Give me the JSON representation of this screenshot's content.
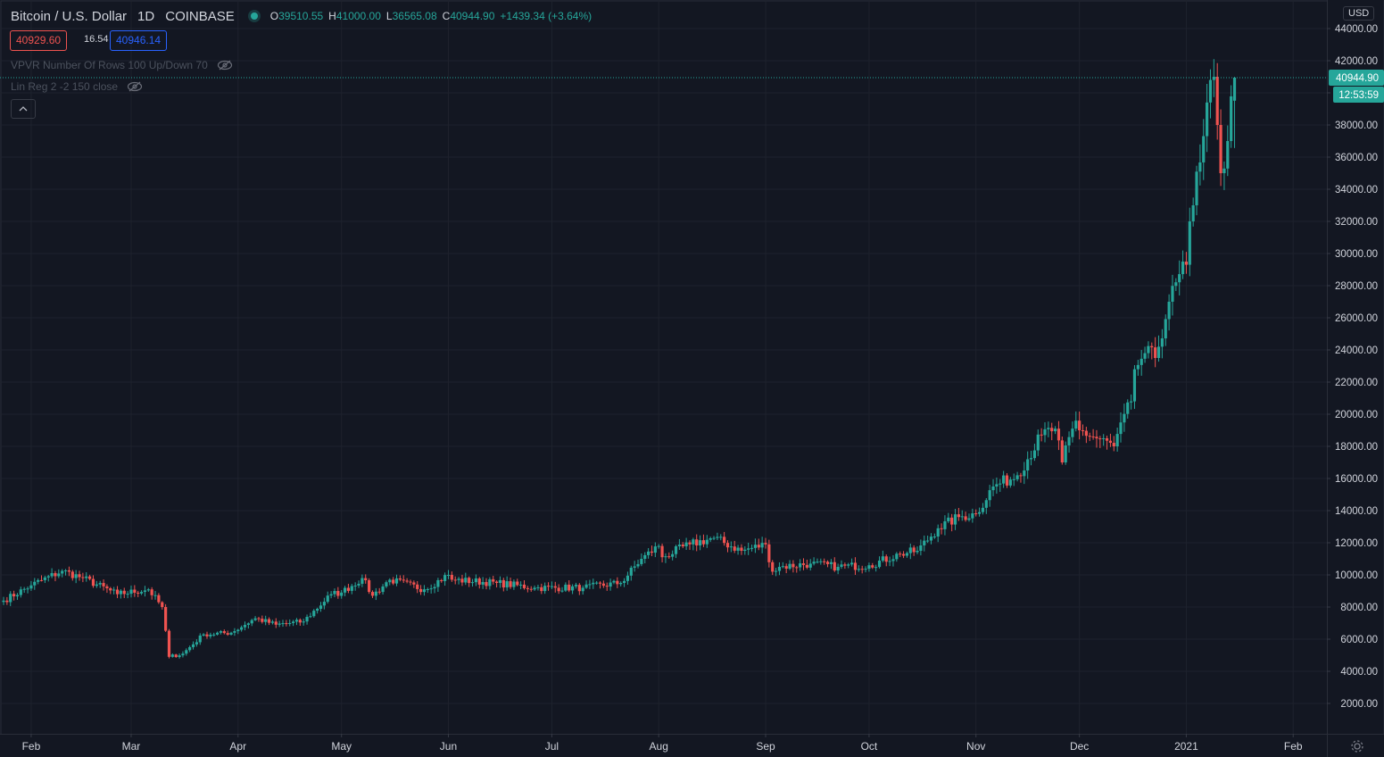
{
  "header": {
    "symbol": "Bitcoin / U.S. Dollar",
    "interval": "1D",
    "exchange": "COINBASE",
    "open_key": "O",
    "open": "39510.55",
    "high_key": "H",
    "high": "41000.00",
    "low_key": "L",
    "low": "36565.08",
    "close_key": "C",
    "close": "40944.90",
    "change": "+1439.34 (+3.64%)"
  },
  "trade": {
    "sell": "40929.60",
    "spread": "16.54",
    "buy": "40946.14"
  },
  "indicators": [
    {
      "label": "VPVR Number Of Rows 100 Up/Down 70"
    },
    {
      "label": "Lin Reg 2 -2 150 close"
    }
  ],
  "price_axis": {
    "currency": "USD",
    "last_price": "40944.90",
    "countdown": "12:53:59"
  },
  "colors": {
    "background": "#131722",
    "up": "#26a69a",
    "down": "#ef5350",
    "grid": "#1e222d",
    "text": "#d1d4dc"
  },
  "icons": [
    "live-dot-icon",
    "eye-hidden-icon",
    "chevron-up-icon",
    "gear-icon"
  ],
  "chart_data": {
    "type": "candlestick",
    "title": "Bitcoin / U.S. Dollar",
    "ylabel": "USD",
    "ylim": [
      0,
      45000
    ],
    "yticks": [
      2000,
      4000,
      6000,
      8000,
      10000,
      12000,
      14000,
      16000,
      18000,
      20000,
      22000,
      24000,
      26000,
      28000,
      30000,
      32000,
      34000,
      36000,
      38000,
      40000,
      42000,
      44000
    ],
    "ytick_labels": [
      "2000.00",
      "4000.00",
      "6000.00",
      "8000.00",
      "10000.00",
      "12000.00",
      "14000.00",
      "16000.00",
      "18000.00",
      "20000.00",
      "22000.00",
      "24000.00",
      "26000.00",
      "28000.00",
      "30000.00",
      "32000.00",
      "34000.00",
      "36000.00",
      "38000.00",
      "40000.00",
      "42000.00",
      "44000.00"
    ],
    "x_range": [
      "2020-01-24",
      "2021-02-10"
    ],
    "xticks": [
      "2020-02-01",
      "2020-03-01",
      "2020-04-01",
      "2020-05-01",
      "2020-06-01",
      "2020-07-01",
      "2020-08-01",
      "2020-09-01",
      "2020-10-01",
      "2020-11-01",
      "2020-12-01",
      "2021-01-01",
      "2021-02-01"
    ],
    "xtick_labels": [
      "Feb",
      "Mar",
      "Apr",
      "May",
      "Jun",
      "Jul",
      "Aug",
      "Sep",
      "Oct",
      "Nov",
      "Dec",
      "2021",
      "Feb"
    ],
    "series": [
      {
        "dates": [
          "2020-01-24",
          "2020-02-01",
          "2020-02-10",
          "2020-02-16",
          "2020-02-26",
          "2020-03-06",
          "2020-03-10",
          "2020-03-12",
          "2020-03-16",
          "2020-03-22",
          "2020-03-30",
          "2020-04-06",
          "2020-04-12",
          "2020-04-20",
          "2020-04-28",
          "2020-05-01",
          "2020-05-07",
          "2020-05-10",
          "2020-05-15",
          "2020-05-25",
          "2020-06-01",
          "2020-06-02",
          "2020-06-15",
          "2020-06-26",
          "2020-07-10",
          "2020-07-21",
          "2020-07-27",
          "2020-08-01",
          "2020-08-02",
          "2020-08-10",
          "2020-08-17",
          "2020-08-25",
          "2020-09-01",
          "2020-09-03",
          "2020-09-05",
          "2020-09-14",
          "2020-09-22",
          "2020-10-01",
          "2020-10-10",
          "2020-10-15",
          "2020-10-21",
          "2020-10-27",
          "2020-11-01",
          "2020-11-06",
          "2020-11-13",
          "2020-11-20",
          "2020-11-24",
          "2020-11-26",
          "2020-11-30",
          "2020-12-01",
          "2020-12-11",
          "2020-12-16",
          "2020-12-17",
          "2020-12-20",
          "2020-12-23",
          "2020-12-27",
          "2021-01-01",
          "2021-01-02",
          "2021-01-03",
          "2021-01-07",
          "2021-01-09",
          "2021-01-10",
          "2021-01-11",
          "2021-01-13",
          "2021-01-15"
        ],
        "close": [
          8400,
          9350,
          10250,
          9800,
          8800,
          9100,
          8000,
          4900,
          5100,
          6300,
          6400,
          7300,
          6900,
          7100,
          8800,
          8900,
          9800,
          8700,
          9700,
          9100,
          10000,
          9700,
          9500,
          9200,
          9200,
          9500,
          11000,
          11800,
          11100,
          11900,
          12300,
          11500,
          11900,
          10200,
          10500,
          10700,
          10500,
          10600,
          11300,
          11500,
          12900,
          13600,
          13800,
          15500,
          16200,
          18700,
          19100,
          17000,
          19600,
          19000,
          18000,
          20800,
          22800,
          23800,
          23500,
          27000,
          29300,
          32000,
          33000,
          39400,
          41000,
          38000,
          35000,
          37000,
          40944.9
        ]
      }
    ],
    "last": {
      "open": 39510.55,
      "high": 41000.0,
      "low": 36565.08,
      "close": 40944.9,
      "change": 1439.34,
      "change_pct": 3.64
    }
  }
}
